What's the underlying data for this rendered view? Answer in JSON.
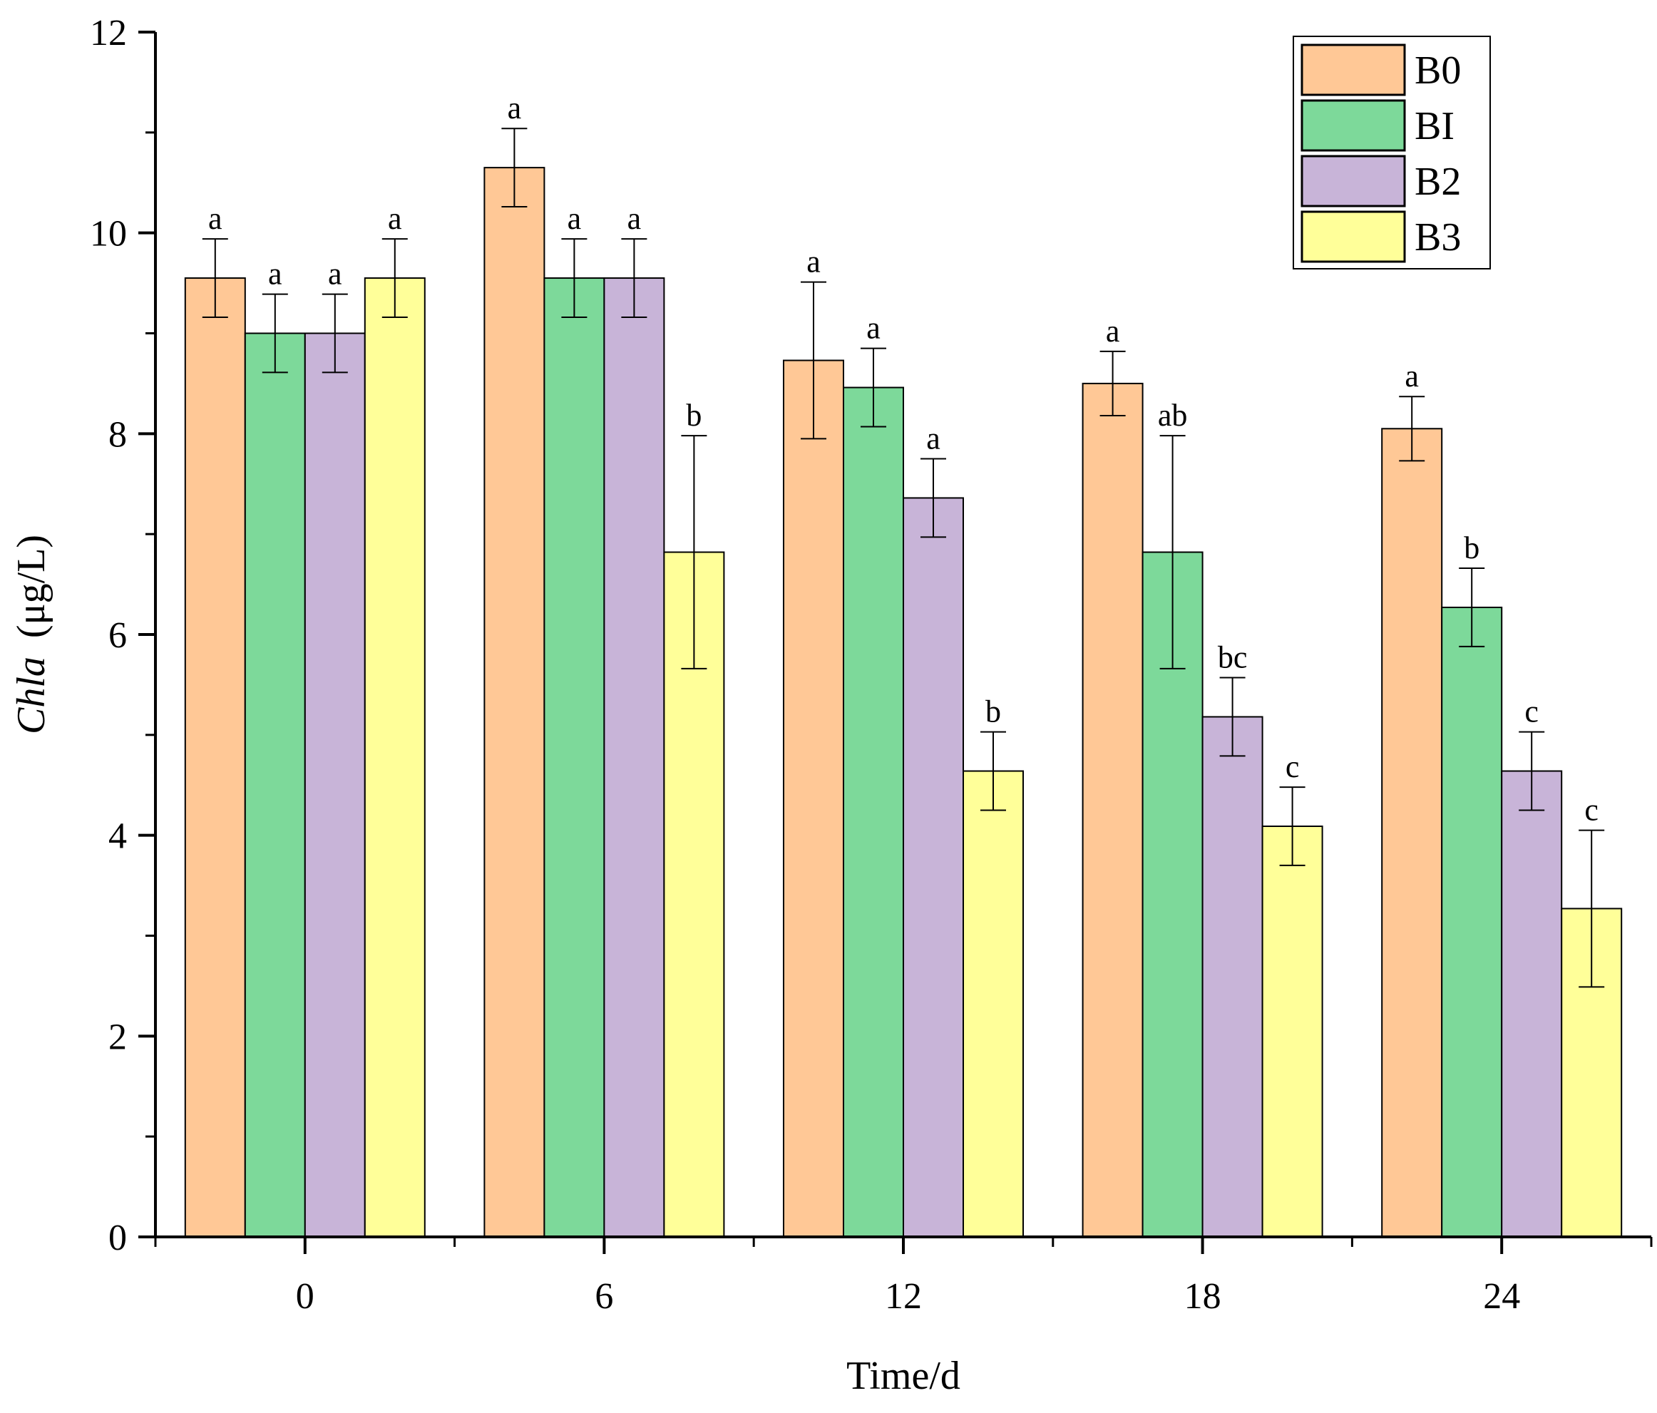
{
  "chart_data": {
    "type": "bar",
    "title": "",
    "xlabel": "Time/d",
    "ylabel_italic": "Chla",
    "ylabel_unit": "(μg/L)",
    "ylim": [
      0,
      12
    ],
    "yticks": [
      0,
      2,
      4,
      6,
      8,
      10,
      12
    ],
    "yticks_labels": [
      "0",
      "2",
      "4",
      "6",
      "8",
      "10",
      "12"
    ],
    "categories": [
      "0",
      "6",
      "12",
      "18",
      "24"
    ],
    "legend_position": "top-right",
    "grid": false,
    "series": [
      {
        "name": "B0",
        "color": "#FFC896",
        "values": [
          9.55,
          10.65,
          8.73,
          8.5,
          8.05
        ],
        "errors": [
          0.39,
          0.39,
          0.78,
          0.32,
          0.32
        ],
        "labels": [
          "a",
          "a",
          "a",
          "a",
          "a"
        ]
      },
      {
        "name": "BI",
        "color": "#7DD99A",
        "values": [
          9.0,
          9.55,
          8.46,
          6.82,
          6.27
        ],
        "errors": [
          0.39,
          0.39,
          0.39,
          1.16,
          0.39
        ],
        "labels": [
          "a",
          "a",
          "a",
          "ab",
          "b"
        ]
      },
      {
        "name": "B2",
        "color": "#C8B4D8",
        "values": [
          9.0,
          9.55,
          7.36,
          5.18,
          4.64
        ],
        "errors": [
          0.39,
          0.39,
          0.39,
          0.39,
          0.39
        ],
        "labels": [
          "a",
          "a",
          "a",
          "bc",
          "c"
        ]
      },
      {
        "name": "B3",
        "color": "#FFFF99",
        "values": [
          9.55,
          6.82,
          4.64,
          4.09,
          3.27
        ],
        "errors": [
          0.39,
          1.16,
          0.39,
          0.39,
          0.78
        ],
        "labels": [
          "a",
          "b",
          "b",
          "c",
          "c"
        ]
      }
    ]
  }
}
